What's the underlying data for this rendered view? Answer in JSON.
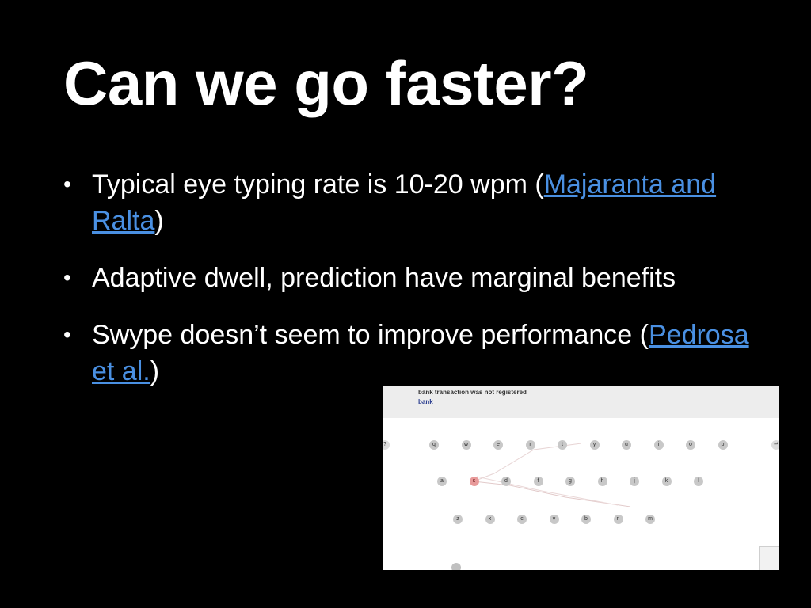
{
  "slide": {
    "title": "Can we go faster?",
    "bullet_glyph": "•",
    "bullets": [
      {
        "before": "Typical eye typing rate is 10-20 wpm (",
        "link": "Majaranta and Ralta",
        "after": ")"
      },
      {
        "text": "Adaptive dwell, prediction have marginal benefits"
      },
      {
        "before": "Swype doesn’t seem to improve performance (",
        "link": "Pedrosa et al.",
        "after": ")"
      }
    ],
    "link_color": "#4a90e2"
  },
  "keyboard_screenshot": {
    "sentence": "bank transaction was not registered",
    "typed": "bank",
    "row1": [
      "q",
      "w",
      "e",
      "r",
      "t",
      "y",
      "u",
      "i",
      "o",
      "p"
    ],
    "row2": [
      "a",
      "s",
      "d",
      "f",
      "g",
      "h",
      "j",
      "k",
      "l"
    ],
    "row3": [
      "z",
      "x",
      "c",
      "v",
      "b",
      "n",
      "m"
    ],
    "active_key": "s",
    "left_key": "?",
    "right_key": "↵"
  }
}
